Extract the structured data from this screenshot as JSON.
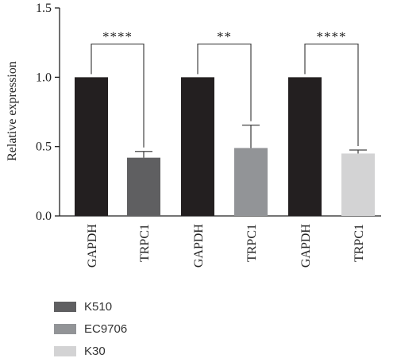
{
  "chart_data": {
    "type": "bar",
    "ylabel": "Relative expression",
    "ylim": [
      0,
      1.5
    ],
    "yticks": [
      "0.0",
      "0.5",
      "1.0",
      "1.5"
    ],
    "categories": [
      "GAPDH",
      "TRPC1",
      "GAPDH",
      "TRPC1",
      "GAPDH",
      "TRPC1"
    ],
    "values": [
      1.0,
      0.42,
      1.0,
      0.49,
      1.0,
      0.45
    ],
    "error_upper": [
      0,
      0.045,
      0,
      0.165,
      0,
      0.025
    ],
    "bar_colors": [
      "#231f20",
      "#5f5f61",
      "#231f20",
      "#929497",
      "#231f20",
      "#d3d3d4"
    ],
    "significance": [
      {
        "pair": [
          0,
          1
        ],
        "label": "****"
      },
      {
        "pair": [
          2,
          3
        ],
        "label": "**"
      },
      {
        "pair": [
          4,
          5
        ],
        "label": "****"
      }
    ],
    "legend": [
      {
        "name": "K510",
        "color": "#5f5f61"
      },
      {
        "name": "EC9706",
        "color": "#929497"
      },
      {
        "name": "K30",
        "color": "#d3d3d4"
      }
    ]
  }
}
